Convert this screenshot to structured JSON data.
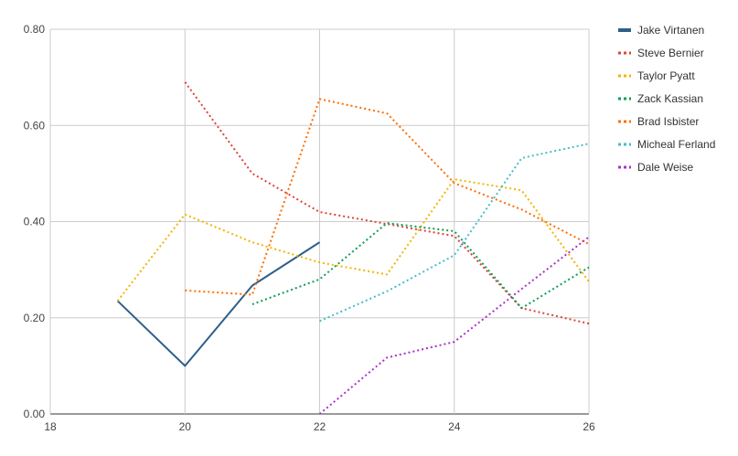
{
  "chart_data": {
    "type": "line",
    "title": "",
    "xlabel": "",
    "ylabel": "",
    "xlim": [
      18,
      26
    ],
    "ylim": [
      0,
      0.8
    ],
    "x_ticks": [
      18,
      20,
      22,
      24,
      26
    ],
    "y_ticks": [
      "0.00",
      "0.20",
      "0.40",
      "0.60",
      "0.80"
    ],
    "grid": true,
    "legend_position": "right",
    "series": [
      {
        "name": "Jake Virtanen",
        "color": "#2f5f8a",
        "style": "solid",
        "points": [
          [
            19,
            0.235
          ],
          [
            20,
            0.1
          ],
          [
            21,
            0.267
          ],
          [
            22,
            0.357
          ]
        ]
      },
      {
        "name": "Steve Bernier",
        "color": "#db4437",
        "style": "dotted",
        "points": [
          [
            20,
            0.69
          ],
          [
            21,
            0.5
          ],
          [
            22,
            0.42
          ],
          [
            23,
            0.395
          ],
          [
            24,
            0.37
          ],
          [
            25,
            0.22
          ],
          [
            26,
            0.188
          ]
        ]
      },
      {
        "name": "Taylor Pyatt",
        "color": "#f4b400",
        "style": "dotted",
        "points": [
          [
            19,
            0.235
          ],
          [
            20,
            0.415
          ],
          [
            21,
            0.357
          ],
          [
            22,
            0.315
          ],
          [
            23,
            0.29
          ],
          [
            24,
            0.488
          ],
          [
            25,
            0.465
          ],
          [
            26,
            0.275
          ]
        ]
      },
      {
        "name": "Zack Kassian",
        "color": "#0f9d58",
        "style": "dotted",
        "points": [
          [
            21,
            0.228
          ],
          [
            22,
            0.28
          ],
          [
            23,
            0.397
          ],
          [
            24,
            0.38
          ],
          [
            25,
            0.22
          ],
          [
            26,
            0.305
          ]
        ]
      },
      {
        "name": "Brad Isbister",
        "color": "#ff6d00",
        "style": "dotted",
        "points": [
          [
            20,
            0.257
          ],
          [
            21,
            0.248
          ],
          [
            22,
            0.655
          ],
          [
            23,
            0.625
          ],
          [
            24,
            0.48
          ],
          [
            25,
            0.425
          ],
          [
            26,
            0.353
          ]
        ]
      },
      {
        "name": "Micheal Ferland",
        "color": "#46bdc6",
        "style": "dotted",
        "points": [
          [
            22,
            0.193
          ],
          [
            23,
            0.255
          ],
          [
            24,
            0.33
          ],
          [
            25,
            0.532
          ],
          [
            26,
            0.562
          ]
        ]
      },
      {
        "name": "Dale Weise",
        "color": "#ab30c4",
        "style": "dotted",
        "points": [
          [
            22,
            0.0
          ],
          [
            23,
            0.117
          ],
          [
            24,
            0.15
          ],
          [
            25,
            0.26
          ],
          [
            26,
            0.368
          ]
        ]
      }
    ]
  }
}
